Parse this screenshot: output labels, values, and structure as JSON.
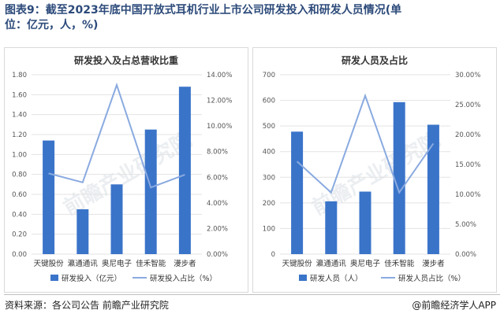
{
  "figure_title": "图表9：截至2023年底中国开放式耳机行业上市公司研发投入和研发人员情况(单位：亿元，人，%)",
  "source": "资料来源：各公司公告 前瞻产业研究院",
  "logo": "@前瞻经济学人APP",
  "watermark": "前瞻产业研究院",
  "colors": {
    "bar": "#3a74c9",
    "line": "#8aaae0",
    "grid": "#e3e3e3",
    "axis_text": "#555555"
  },
  "chart_data": [
    {
      "id": "left",
      "type": "bar",
      "title": "研发投入及占总营收比重",
      "categories": [
        "天键股份",
        "瀛通通讯",
        "奥尼电子",
        "佳禾智能",
        "漫步者"
      ],
      "series": [
        {
          "name": "研发投入（亿元）",
          "type": "bar",
          "axis": "left",
          "values": [
            1.14,
            0.45,
            0.7,
            1.25,
            1.68
          ]
        },
        {
          "name": "研发投入占比（%）",
          "type": "line",
          "axis": "right",
          "values": [
            6.3,
            5.6,
            13.2,
            5.2,
            6.2
          ]
        }
      ],
      "yleft": {
        "min": 0,
        "max": 1.8,
        "ticks": [
          "0.00",
          "0.20",
          "0.40",
          "0.60",
          "0.80",
          "1.00",
          "1.20",
          "1.40",
          "1.60",
          "1.80"
        ]
      },
      "yright": {
        "min": 0,
        "max": 14,
        "ticks": [
          "0.00%",
          "2.00%",
          "4.00%",
          "6.00%",
          "8.00%",
          "10.00%",
          "12.00%",
          "14.00%"
        ]
      },
      "legend": "bottom"
    },
    {
      "id": "right",
      "type": "bar",
      "title": "研发人员及占比",
      "categories": [
        "天键股份",
        "瀛通通讯",
        "奥尼电子",
        "佳禾智能",
        "漫步者"
      ],
      "series": [
        {
          "name": "研发人员（人）",
          "type": "bar",
          "axis": "left",
          "values": [
            478,
            206,
            244,
            593,
            505
          ]
        },
        {
          "name": "研发人员占比（%）",
          "type": "line",
          "axis": "right",
          "values": [
            15.5,
            10.3,
            26.5,
            10.3,
            18.5
          ]
        }
      ],
      "yleft": {
        "min": 0,
        "max": 700,
        "ticks": [
          "0",
          "100",
          "200",
          "300",
          "400",
          "500",
          "600",
          "700"
        ]
      },
      "yright": {
        "min": 0,
        "max": 30,
        "ticks": [
          "0.00%",
          "5.00%",
          "10.00%",
          "15.00%",
          "20.00%",
          "25.00%",
          "30.00%"
        ]
      },
      "legend": "bottom"
    }
  ]
}
